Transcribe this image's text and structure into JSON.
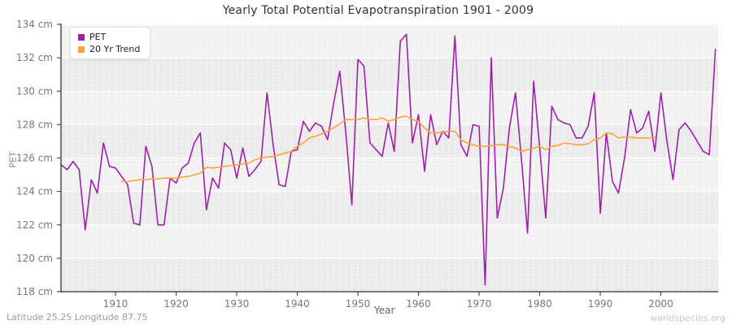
{
  "title": "Yearly Total Potential Evapotranspiration 1901 - 2009",
  "legend": {
    "items": [
      {
        "label": "PET",
        "color": "#A021A8"
      },
      {
        "label": "20 Yr Trend",
        "color": "#FFA43D"
      }
    ]
  },
  "axes": {
    "y_label": "PET",
    "x_label": "Year",
    "y_tick_values": [
      134,
      132,
      130,
      128,
      126,
      124,
      122,
      120,
      118
    ],
    "y_tick_labels": [
      "134 cm",
      "132 cm",
      "130 cm",
      "128 cm",
      "126 cm",
      "124 cm",
      "122 cm",
      "120 cm",
      "118 cm"
    ],
    "x_tick_values": [
      1910,
      1920,
      1930,
      1940,
      1950,
      1960,
      1970,
      1980,
      1990,
      2000
    ],
    "x_tick_labels": [
      "1910",
      "1920",
      "1930",
      "1940",
      "1950",
      "1960",
      "1970",
      "1980",
      "1990",
      "2000"
    ]
  },
  "footer": {
    "left": "Latitude 25.25 Longitude 87.75",
    "right": "worldspecies.org"
  },
  "colors": {
    "pet_line": "#A021A8",
    "trend_line": "#FFA43D",
    "plot_band_light": "#f2f2f2",
    "plot_band_dark": "#ebebeb",
    "gridline": "#ffffff",
    "spine": "#4d4d4d",
    "tick_text": "#777777"
  },
  "chart_data": {
    "type": "line",
    "title": "Yearly Total Potential Evapotranspiration 1901 - 2009",
    "xlabel": "Year",
    "ylabel": "PET",
    "ylim": [
      118,
      134
    ],
    "xlim": [
      1901,
      2009
    ],
    "grid": true,
    "legend_position": "top-left",
    "y_unit": "cm",
    "series": [
      {
        "name": "PET",
        "color": "#A021A8",
        "start_year": 1901,
        "values": [
          125.6,
          125.3,
          125.8,
          125.3,
          121.7,
          124.7,
          123.9,
          126.9,
          125.5,
          125.4,
          124.9,
          124.4,
          122.1,
          122.0,
          126.7,
          125.5,
          122.0,
          122.0,
          124.8,
          124.5,
          125.4,
          125.7,
          126.9,
          127.5,
          122.9,
          124.8,
          124.2,
          126.9,
          126.5,
          124.8,
          126.6,
          124.9,
          125.3,
          125.8,
          129.9,
          126.8,
          124.4,
          124.3,
          126.4,
          126.5,
          128.2,
          127.6,
          128.1,
          127.9,
          127.1,
          129.3,
          131.2,
          127.5,
          123.2,
          131.9,
          131.5,
          126.9,
          126.5,
          126.1,
          128.1,
          126.4,
          133.0,
          133.4,
          126.9,
          128.6,
          125.2,
          128.6,
          126.8,
          127.6,
          127.2,
          133.3,
          126.8,
          126.1,
          128.0,
          127.9,
          118.4,
          132.0,
          122.4,
          124.2,
          127.8,
          129.9,
          125.9,
          121.5,
          130.6,
          126.6,
          122.4,
          129.1,
          128.3,
          128.1,
          128.0,
          127.2,
          127.2,
          127.9,
          129.9,
          122.7,
          127.5,
          124.6,
          123.9,
          126.0,
          128.9,
          127.5,
          127.8,
          128.8,
          126.4,
          129.9,
          127.0,
          124.7,
          127.7,
          128.1,
          127.6,
          127.0,
          126.4,
          126.2,
          132.5
        ]
      },
      {
        "name": "20 Yr Trend",
        "color": "#FFA43D",
        "start_year": 1911,
        "values": [
          124.6,
          124.6,
          124.65,
          124.7,
          124.7,
          124.75,
          124.75,
          124.8,
          124.8,
          124.8,
          124.85,
          124.9,
          125.0,
          125.1,
          125.45,
          125.4,
          125.45,
          125.5,
          125.55,
          125.6,
          125.65,
          125.7,
          125.9,
          126.0,
          126.05,
          126.1,
          126.2,
          126.3,
          126.4,
          126.7,
          126.9,
          127.2,
          127.3,
          127.45,
          127.6,
          127.8,
          128.05,
          128.3,
          128.3,
          128.3,
          128.4,
          128.3,
          128.3,
          128.4,
          128.2,
          128.3,
          128.45,
          128.5,
          128.3,
          128.2,
          127.8,
          127.5,
          127.5,
          127.55,
          127.6,
          127.6,
          127.1,
          126.9,
          126.8,
          126.7,
          126.7,
          126.75,
          126.8,
          126.8,
          126.7,
          126.6,
          126.4,
          126.5,
          126.6,
          126.7,
          126.5,
          126.7,
          126.75,
          126.9,
          126.85,
          126.8,
          126.8,
          126.85,
          127.1,
          127.2,
          127.5,
          127.45,
          127.2,
          127.25,
          127.25,
          127.2,
          127.2,
          127.2,
          127.25
        ]
      }
    ]
  }
}
